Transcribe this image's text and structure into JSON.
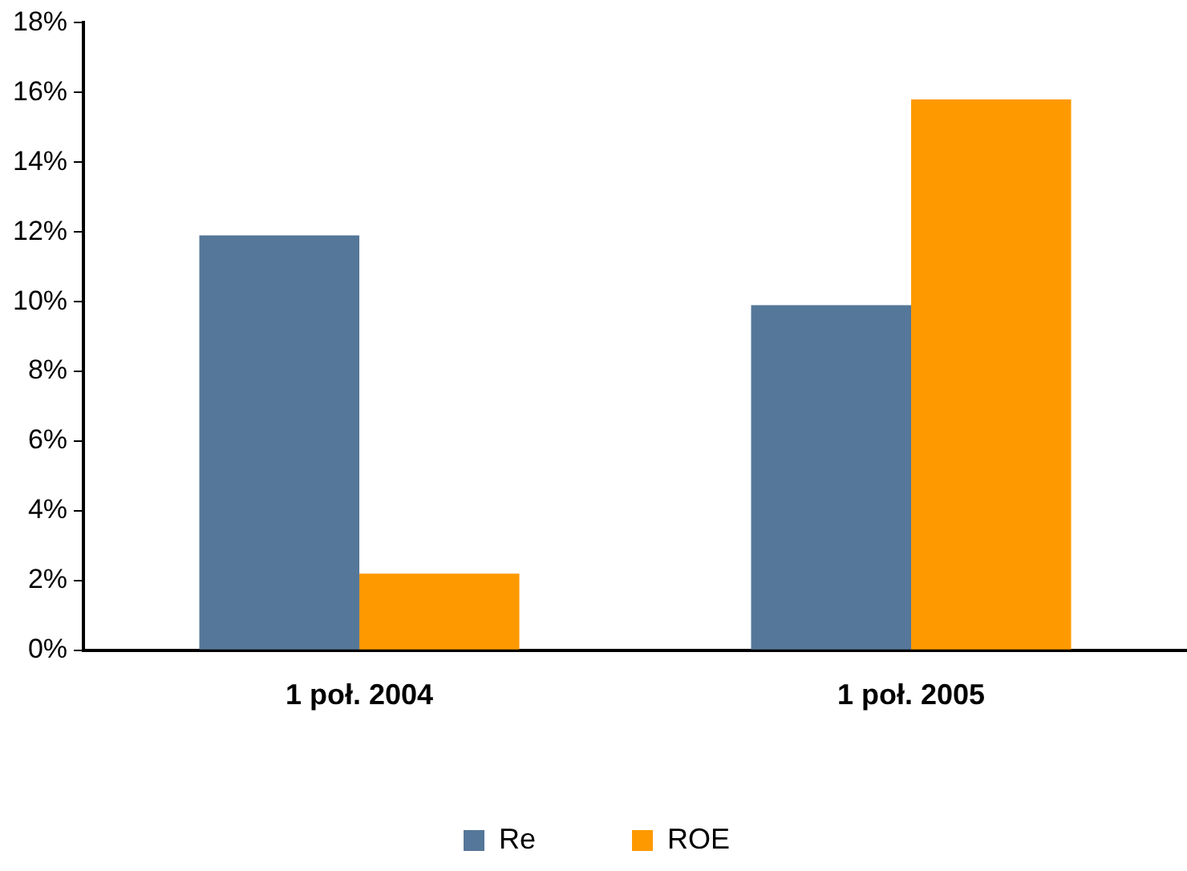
{
  "chart_data": {
    "type": "bar",
    "categories": [
      "1 poł. 2004",
      "1 poł. 2005"
    ],
    "series": [
      {
        "name": "Re",
        "color": "#557799",
        "values": [
          11.9,
          9.9
        ]
      },
      {
        "name": "ROE",
        "color": "#ff9900",
        "values": [
          2.2,
          15.8
        ]
      }
    ],
    "ylim": [
      0,
      18
    ],
    "yticks": [
      {
        "value": 0,
        "label": "0%"
      },
      {
        "value": 2,
        "label": "2%"
      },
      {
        "value": 4,
        "label": "4%"
      },
      {
        "value": 6,
        "label": "6%"
      },
      {
        "value": 8,
        "label": "8%"
      },
      {
        "value": 10,
        "label": "10%"
      },
      {
        "value": 12,
        "label": "12%"
      },
      {
        "value": 14,
        "label": "14%"
      },
      {
        "value": 16,
        "label": "16%"
      },
      {
        "value": 18,
        "label": "18%"
      }
    ],
    "grid": false,
    "legend": "bottom"
  }
}
